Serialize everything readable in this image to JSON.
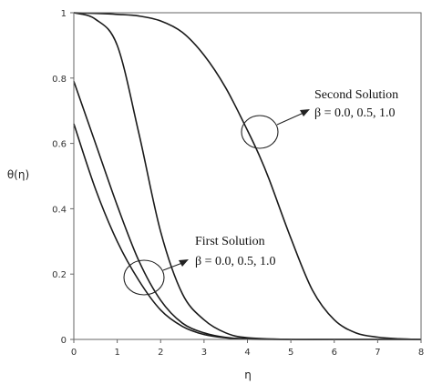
{
  "chart_data": {
    "type": "line",
    "xlabel": "η",
    "ylabel": "θ(η)",
    "xlim": [
      0,
      8
    ],
    "ylim": [
      0,
      1
    ],
    "xticks": [
      "0",
      "1",
      "2",
      "3",
      "4",
      "5",
      "6",
      "7",
      "8"
    ],
    "yticks": [
      "0",
      "0.2",
      "0.4",
      "0.6",
      "0.8",
      "1"
    ],
    "grid": false,
    "line_color": "#1a1a1a",
    "series": [
      {
        "x": [
          0,
          0.5,
          1,
          1.5,
          2,
          2.5,
          3,
          3.5,
          4,
          5,
          6,
          8
        ],
        "y": [
          1.0,
          0.98,
          0.9,
          0.63,
          0.33,
          0.14,
          0.06,
          0.02,
          0.005,
          0.0,
          0.0,
          0.0
        ]
      },
      {
        "x": [
          0,
          0.5,
          1,
          1.5,
          2,
          2.5,
          3,
          3.5,
          4,
          5,
          6,
          8
        ],
        "y": [
          0.79,
          0.6,
          0.41,
          0.24,
          0.12,
          0.05,
          0.02,
          0.006,
          0.002,
          0.0,
          0.0,
          0.0
        ]
      },
      {
        "x": [
          0,
          0.5,
          1,
          1.5,
          2,
          2.5,
          3,
          3.5,
          4,
          5,
          6,
          8
        ],
        "y": [
          0.66,
          0.46,
          0.3,
          0.18,
          0.09,
          0.04,
          0.015,
          0.005,
          0.001,
          0.0,
          0.0,
          0.0
        ]
      },
      {
        "x": [
          0,
          0.5,
          1,
          1.5,
          2,
          2.5,
          3,
          3.5,
          4,
          4.25,
          4.5,
          5,
          5.5,
          6,
          6.5,
          7,
          7.5,
          8
        ],
        "y": [
          1.0,
          0.998,
          0.995,
          0.99,
          0.975,
          0.94,
          0.87,
          0.77,
          0.64,
          0.57,
          0.49,
          0.31,
          0.15,
          0.06,
          0.02,
          0.007,
          0.002,
          0.0
        ]
      }
    ],
    "annotations": [
      {
        "title": "Second Solution",
        "subtitle": "β = 0.0, 0.5, 1.0"
      },
      {
        "title": "First Solution",
        "subtitle": "β = 0.0, 0.5, 1.0"
      }
    ]
  }
}
